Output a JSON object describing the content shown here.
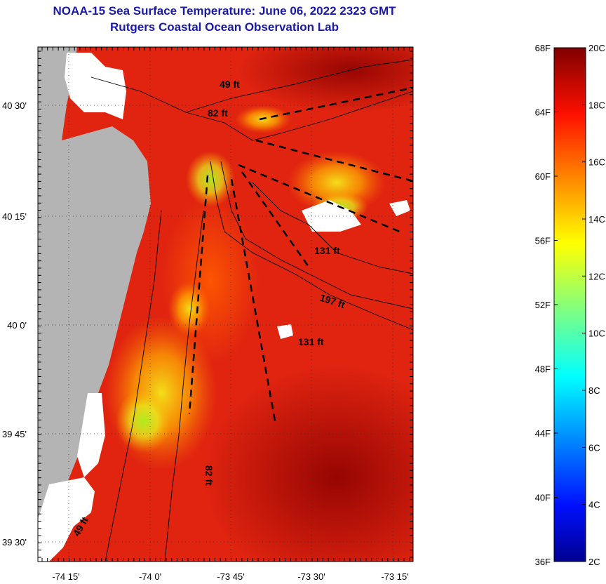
{
  "title": {
    "line1": "NOAA-15 Sea Surface Temperature:  June 06, 2022 2323 GMT",
    "line2": "Rutgers Coastal Ocean Observation Lab"
  },
  "map": {
    "x_ticks": [
      "-74 15'",
      "-74 0'",
      "-73 45'",
      "-73 30'",
      "-73 15'"
    ],
    "y_ticks": [
      "40 30'",
      "40 15'",
      "40 0'",
      "39 45'",
      "39 30'"
    ],
    "depth_labels": [
      "49 ft",
      "82 ft",
      "131 ft",
      "197 ft",
      "131 ft",
      "82 ft",
      "49 ft"
    ],
    "land_color": "#b4b4b4",
    "cloud_color": "#ffffff"
  },
  "colorbar": {
    "fahrenheit_labels": [
      "68F",
      "64F",
      "60F",
      "56F",
      "52F",
      "48F",
      "44F",
      "40F",
      "36F"
    ],
    "celsius_labels": [
      "20C",
      "18C",
      "16C",
      "14C",
      "12C",
      "10C",
      "8C",
      "6C",
      "4C",
      "2C"
    ],
    "range_celsius": [
      2,
      20
    ]
  }
}
